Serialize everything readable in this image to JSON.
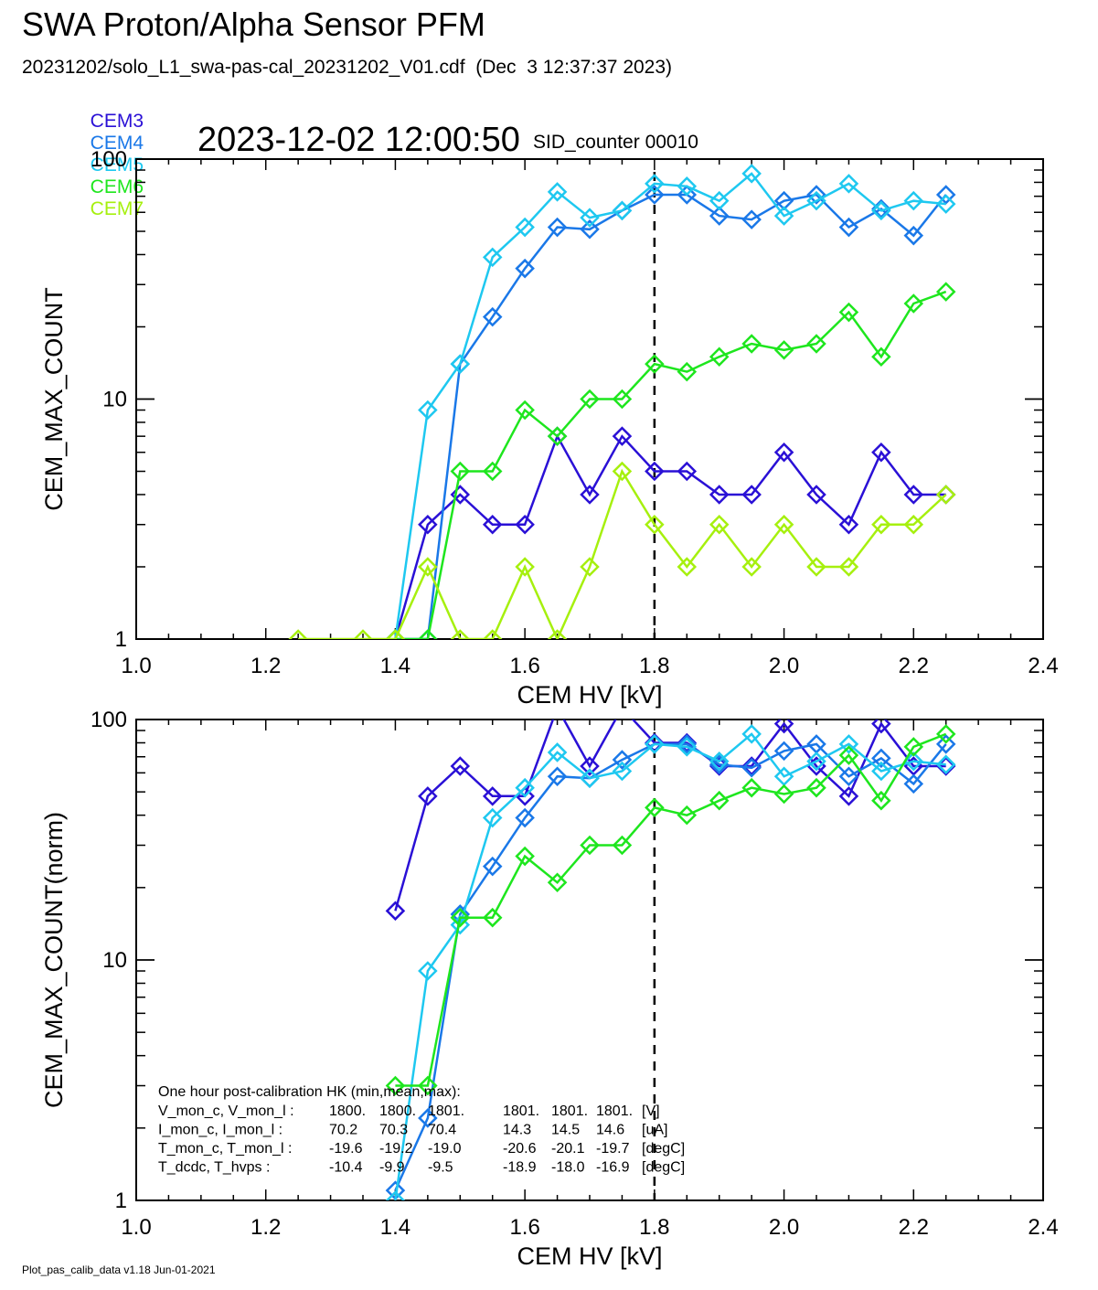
{
  "header": {
    "title": "SWA Proton/Alpha Sensor PFM",
    "file_line": "20231202/solo_L1_swa-pas-cal_20231202_V01.cdf  (Dec  3 12:37:37 2023)",
    "timestamp": "2023-12-02 12:00:50",
    "sid": "SID_counter 00010"
  },
  "legend": [
    {
      "name": "CEM3",
      "color": "#2a10d6"
    },
    {
      "name": "CEM4",
      "color": "#1a78e8"
    },
    {
      "name": "CEM5",
      "color": "#1ec8f0"
    },
    {
      "name": "CEM6",
      "color": "#1ee61e"
    },
    {
      "name": "CEM7",
      "color": "#a6f00e"
    }
  ],
  "footer": "Plot_pas_calib_data v1.18 Jun-01-2021",
  "chart_data": [
    {
      "type": "line",
      "xlabel": "CEM HV [kV]",
      "ylabel": "CEM_MAX_COUNT",
      "xlim": [
        1.0,
        2.4
      ],
      "ylim": [
        1,
        100
      ],
      "yscale": "log",
      "x_ticks": [
        "1.0",
        "1.2",
        "1.4",
        "1.6",
        "1.8",
        "2.0",
        "2.2",
        "2.4"
      ],
      "y_ticks": [
        "1",
        "10",
        "100"
      ],
      "vline": 1.8,
      "series": [
        {
          "name": "CEM3",
          "color": "#2a10d6",
          "x": [
            1.4,
            1.45,
            1.5,
            1.55,
            1.6,
            1.65,
            1.7,
            1.75,
            1.8,
            1.85,
            1.9,
            1.95,
            2.0,
            2.05,
            2.1,
            2.15,
            2.2,
            2.25
          ],
          "y": [
            1,
            3,
            4,
            3,
            3,
            7,
            4,
            7,
            5,
            5,
            4,
            4,
            6,
            4,
            3,
            6,
            4,
            4
          ]
        },
        {
          "name": "CEM4",
          "color": "#1a78e8",
          "x": [
            1.4,
            1.45,
            1.5,
            1.55,
            1.6,
            1.65,
            1.7,
            1.75,
            1.8,
            1.85,
            1.9,
            1.95,
            2.0,
            2.05,
            2.1,
            2.15,
            2.2,
            2.25
          ],
          "y": [
            1,
            1,
            14,
            22,
            35,
            52,
            51,
            61,
            71,
            71,
            58,
            56,
            67,
            71,
            52,
            62,
            48,
            71
          ]
        },
        {
          "name": "CEM5",
          "color": "#1ec8f0",
          "x": [
            1.4,
            1.45,
            1.5,
            1.55,
            1.6,
            1.65,
            1.7,
            1.75,
            1.8,
            1.85,
            1.9,
            1.95,
            2.0,
            2.05,
            2.1,
            2.15,
            2.2,
            2.25
          ],
          "y": [
            1,
            9,
            14,
            39,
            52,
            73,
            57,
            61,
            79,
            77,
            67,
            87,
            58,
            67,
            79,
            61,
            67,
            65
          ]
        },
        {
          "name": "CEM6",
          "color": "#1ee61e",
          "x": [
            1.4,
            1.45,
            1.5,
            1.55,
            1.6,
            1.65,
            1.7,
            1.75,
            1.8,
            1.85,
            1.9,
            1.95,
            2.0,
            2.05,
            2.1,
            2.15,
            2.2,
            2.25
          ],
          "y": [
            1,
            1,
            5,
            5,
            9,
            7,
            10,
            10,
            14,
            13,
            15,
            17,
            16,
            17,
            23,
            15,
            25,
            28
          ]
        },
        {
          "name": "CEM7",
          "color": "#a6f00e",
          "x": [
            1.25,
            1.35,
            1.4,
            1.45,
            1.5,
            1.55,
            1.6,
            1.65,
            1.7,
            1.75,
            1.8,
            1.85,
            1.9,
            1.95,
            2.0,
            2.05,
            2.1,
            2.15,
            2.2,
            2.25
          ],
          "y": [
            1,
            1,
            1,
            2,
            1,
            1,
            2,
            1,
            2,
            5,
            3,
            2,
            3,
            2,
            3,
            2,
            2,
            3,
            3,
            4
          ]
        }
      ]
    },
    {
      "type": "line",
      "xlabel": "CEM HV [kV]",
      "ylabel": "CEM_MAX_COUNT(norm)",
      "xlim": [
        1.0,
        2.4
      ],
      "ylim": [
        1,
        100
      ],
      "yscale": "log",
      "x_ticks": [
        "1.0",
        "1.2",
        "1.4",
        "1.6",
        "1.8",
        "2.0",
        "2.2",
        "2.4"
      ],
      "y_ticks": [
        "1",
        "10",
        "100"
      ],
      "vline": 1.8,
      "series": [
        {
          "name": "CEM3",
          "color": "#2a10d6",
          "x": [
            1.4,
            1.45,
            1.5,
            1.55,
            1.6,
            1.65,
            1.7,
            1.75,
            1.8,
            1.85,
            1.9,
            1.95,
            2.0,
            2.05,
            2.1,
            2.15,
            2.2,
            2.25
          ],
          "y": [
            16,
            48,
            64,
            48,
            48,
            112,
            64,
            112,
            80,
            80,
            64,
            64,
            96,
            64,
            48,
            96,
            64,
            64
          ]
        },
        {
          "name": "CEM4",
          "color": "#1a78e8",
          "x": [
            1.4,
            1.45,
            1.5,
            1.55,
            1.6,
            1.65,
            1.7,
            1.75,
            1.8,
            1.85,
            1.9,
            1.95,
            2.0,
            2.05,
            2.1,
            2.15,
            2.2,
            2.25
          ],
          "y": [
            1.1,
            2.2,
            15.5,
            24.5,
            39,
            58,
            57,
            68,
            79,
            79,
            65,
            63,
            74,
            79,
            58,
            69,
            54,
            79
          ]
        },
        {
          "name": "CEM5",
          "color": "#1ec8f0",
          "x": [
            1.4,
            1.45,
            1.5,
            1.55,
            1.6,
            1.65,
            1.7,
            1.75,
            1.8,
            1.85,
            1.9,
            1.95,
            2.0,
            2.05,
            2.1,
            2.15,
            2.2,
            2.25
          ],
          "y": [
            1,
            9,
            14,
            39,
            52,
            73,
            57,
            61,
            79,
            77,
            67,
            87,
            58,
            67,
            79,
            61,
            67,
            65
          ]
        },
        {
          "name": "CEM6",
          "color": "#1ee61e",
          "x": [
            1.4,
            1.45,
            1.5,
            1.55,
            1.6,
            1.65,
            1.7,
            1.75,
            1.8,
            1.85,
            1.9,
            1.95,
            2.0,
            2.05,
            2.1,
            2.15,
            2.2,
            2.25
          ],
          "y": [
            3,
            3,
            15,
            15,
            27,
            21,
            30,
            30,
            43,
            40,
            46,
            52,
            49,
            52,
            71,
            46,
            77,
            87
          ]
        }
      ],
      "hk_box": {
        "heading": "One hour post-calibration HK (min,mean,max):",
        "rows": [
          [
            "V_mon_c, V_mon_l :",
            "1800.",
            "1800.",
            "1801.",
            "1801.",
            "1801.",
            "1801.",
            "[V]"
          ],
          [
            "I_mon_c, I_mon_l :",
            "70.2",
            "70.3",
            "70.4",
            "14.3",
            "14.5",
            "14.6",
            "[uA]"
          ],
          [
            "T_mon_c, T_mon_l :",
            "-19.6",
            "-19.2",
            "-19.0",
            "-20.6",
            "-20.1",
            "-19.7",
            "[degC]"
          ],
          [
            "T_dcdc,    T_hvps :",
            "-10.4",
            "-9.9",
            "-9.5",
            "-18.9",
            "-18.0",
            "-16.9",
            "[degC]"
          ]
        ]
      }
    }
  ]
}
